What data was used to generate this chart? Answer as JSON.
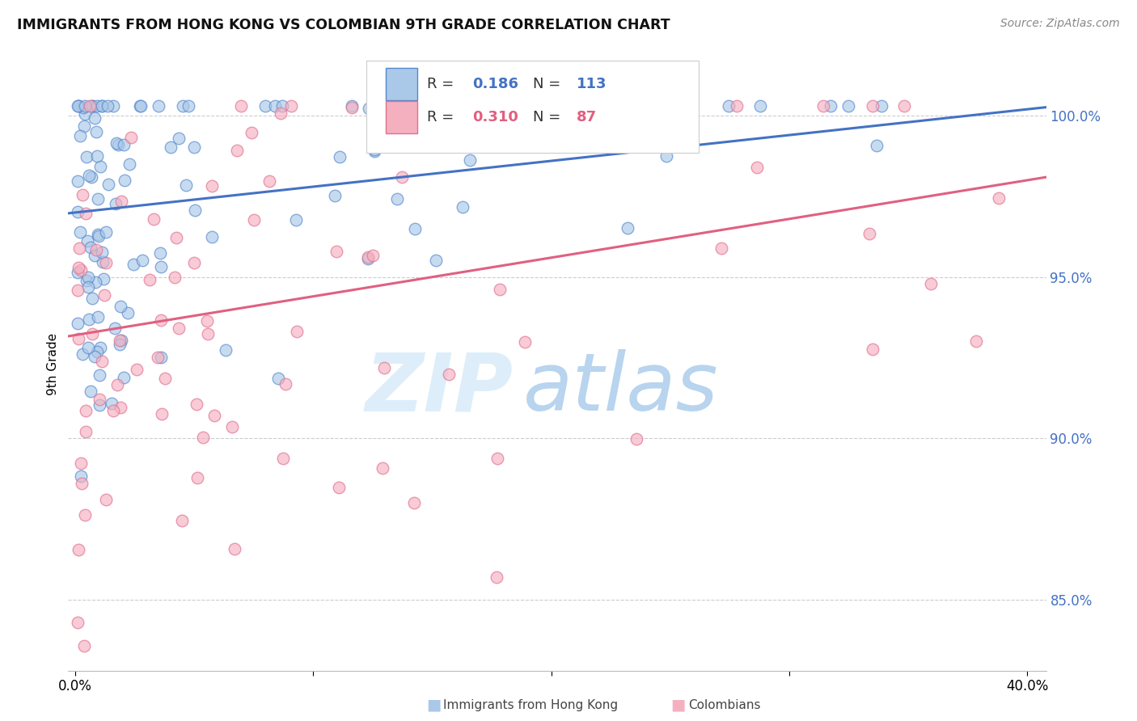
{
  "title": "IMMIGRANTS FROM HONG KONG VS COLOMBIAN 9TH GRADE CORRELATION CHART",
  "source": "Source: ZipAtlas.com",
  "ylabel": "9th Grade",
  "yticks_labels": [
    "85.0%",
    "90.0%",
    "95.0%",
    "100.0%"
  ],
  "ytick_vals": [
    0.85,
    0.9,
    0.95,
    1.0
  ],
  "ymin": 0.828,
  "ymax": 1.018,
  "xmin": -0.003,
  "xmax": 0.408,
  "xticks_vals": [
    0.0,
    0.1,
    0.2,
    0.3,
    0.4
  ],
  "xticks_labels": [
    "0.0%",
    "",
    "",
    "",
    "40.0%"
  ],
  "legend_r_blue": "R = 0.186",
  "legend_n_blue": "N = 113",
  "legend_r_pink": "R = 0.310",
  "legend_n_pink": "N = 87",
  "blue_face": "#aac8e8",
  "blue_edge": "#5588cc",
  "pink_face": "#f5b0c0",
  "pink_edge": "#e07090",
  "blue_line": "#4472c4",
  "pink_line": "#e06080",
  "grid_color": "#cccccc",
  "title_color": "#111111",
  "source_color": "#888888",
  "right_tick_color": "#4472c4",
  "watermark_color_zip": "#ddeefa",
  "watermark_color_atlas": "#b8d4ee",
  "n_blue": 113,
  "n_pink": 87,
  "R_blue": 0.186,
  "R_pink": 0.31,
  "blue_line_x0": 0.0,
  "blue_line_y0": 0.97,
  "blue_line_x1": 0.4,
  "blue_line_y1": 1.002,
  "pink_line_x0": 0.0,
  "pink_line_y0": 0.932,
  "pink_line_x1": 0.4,
  "pink_line_y1": 0.98
}
